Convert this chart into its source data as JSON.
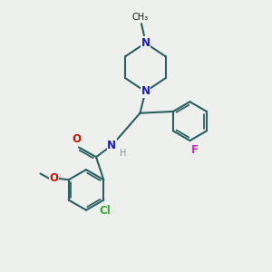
{
  "bg_color": "#eef0ee",
  "bond_color": "#2a6060",
  "n_color": "#1a1acc",
  "o_color": "#cc1100",
  "f_color": "#bb33bb",
  "cl_color": "#33aa33",
  "h_color": "#7a9a9a",
  "text_color": "#111111",
  "lw": 1.5,
  "fs": 8.5,
  "fs_small": 7.0,
  "xlim": [
    0,
    10
  ],
  "ylim": [
    0,
    10
  ]
}
